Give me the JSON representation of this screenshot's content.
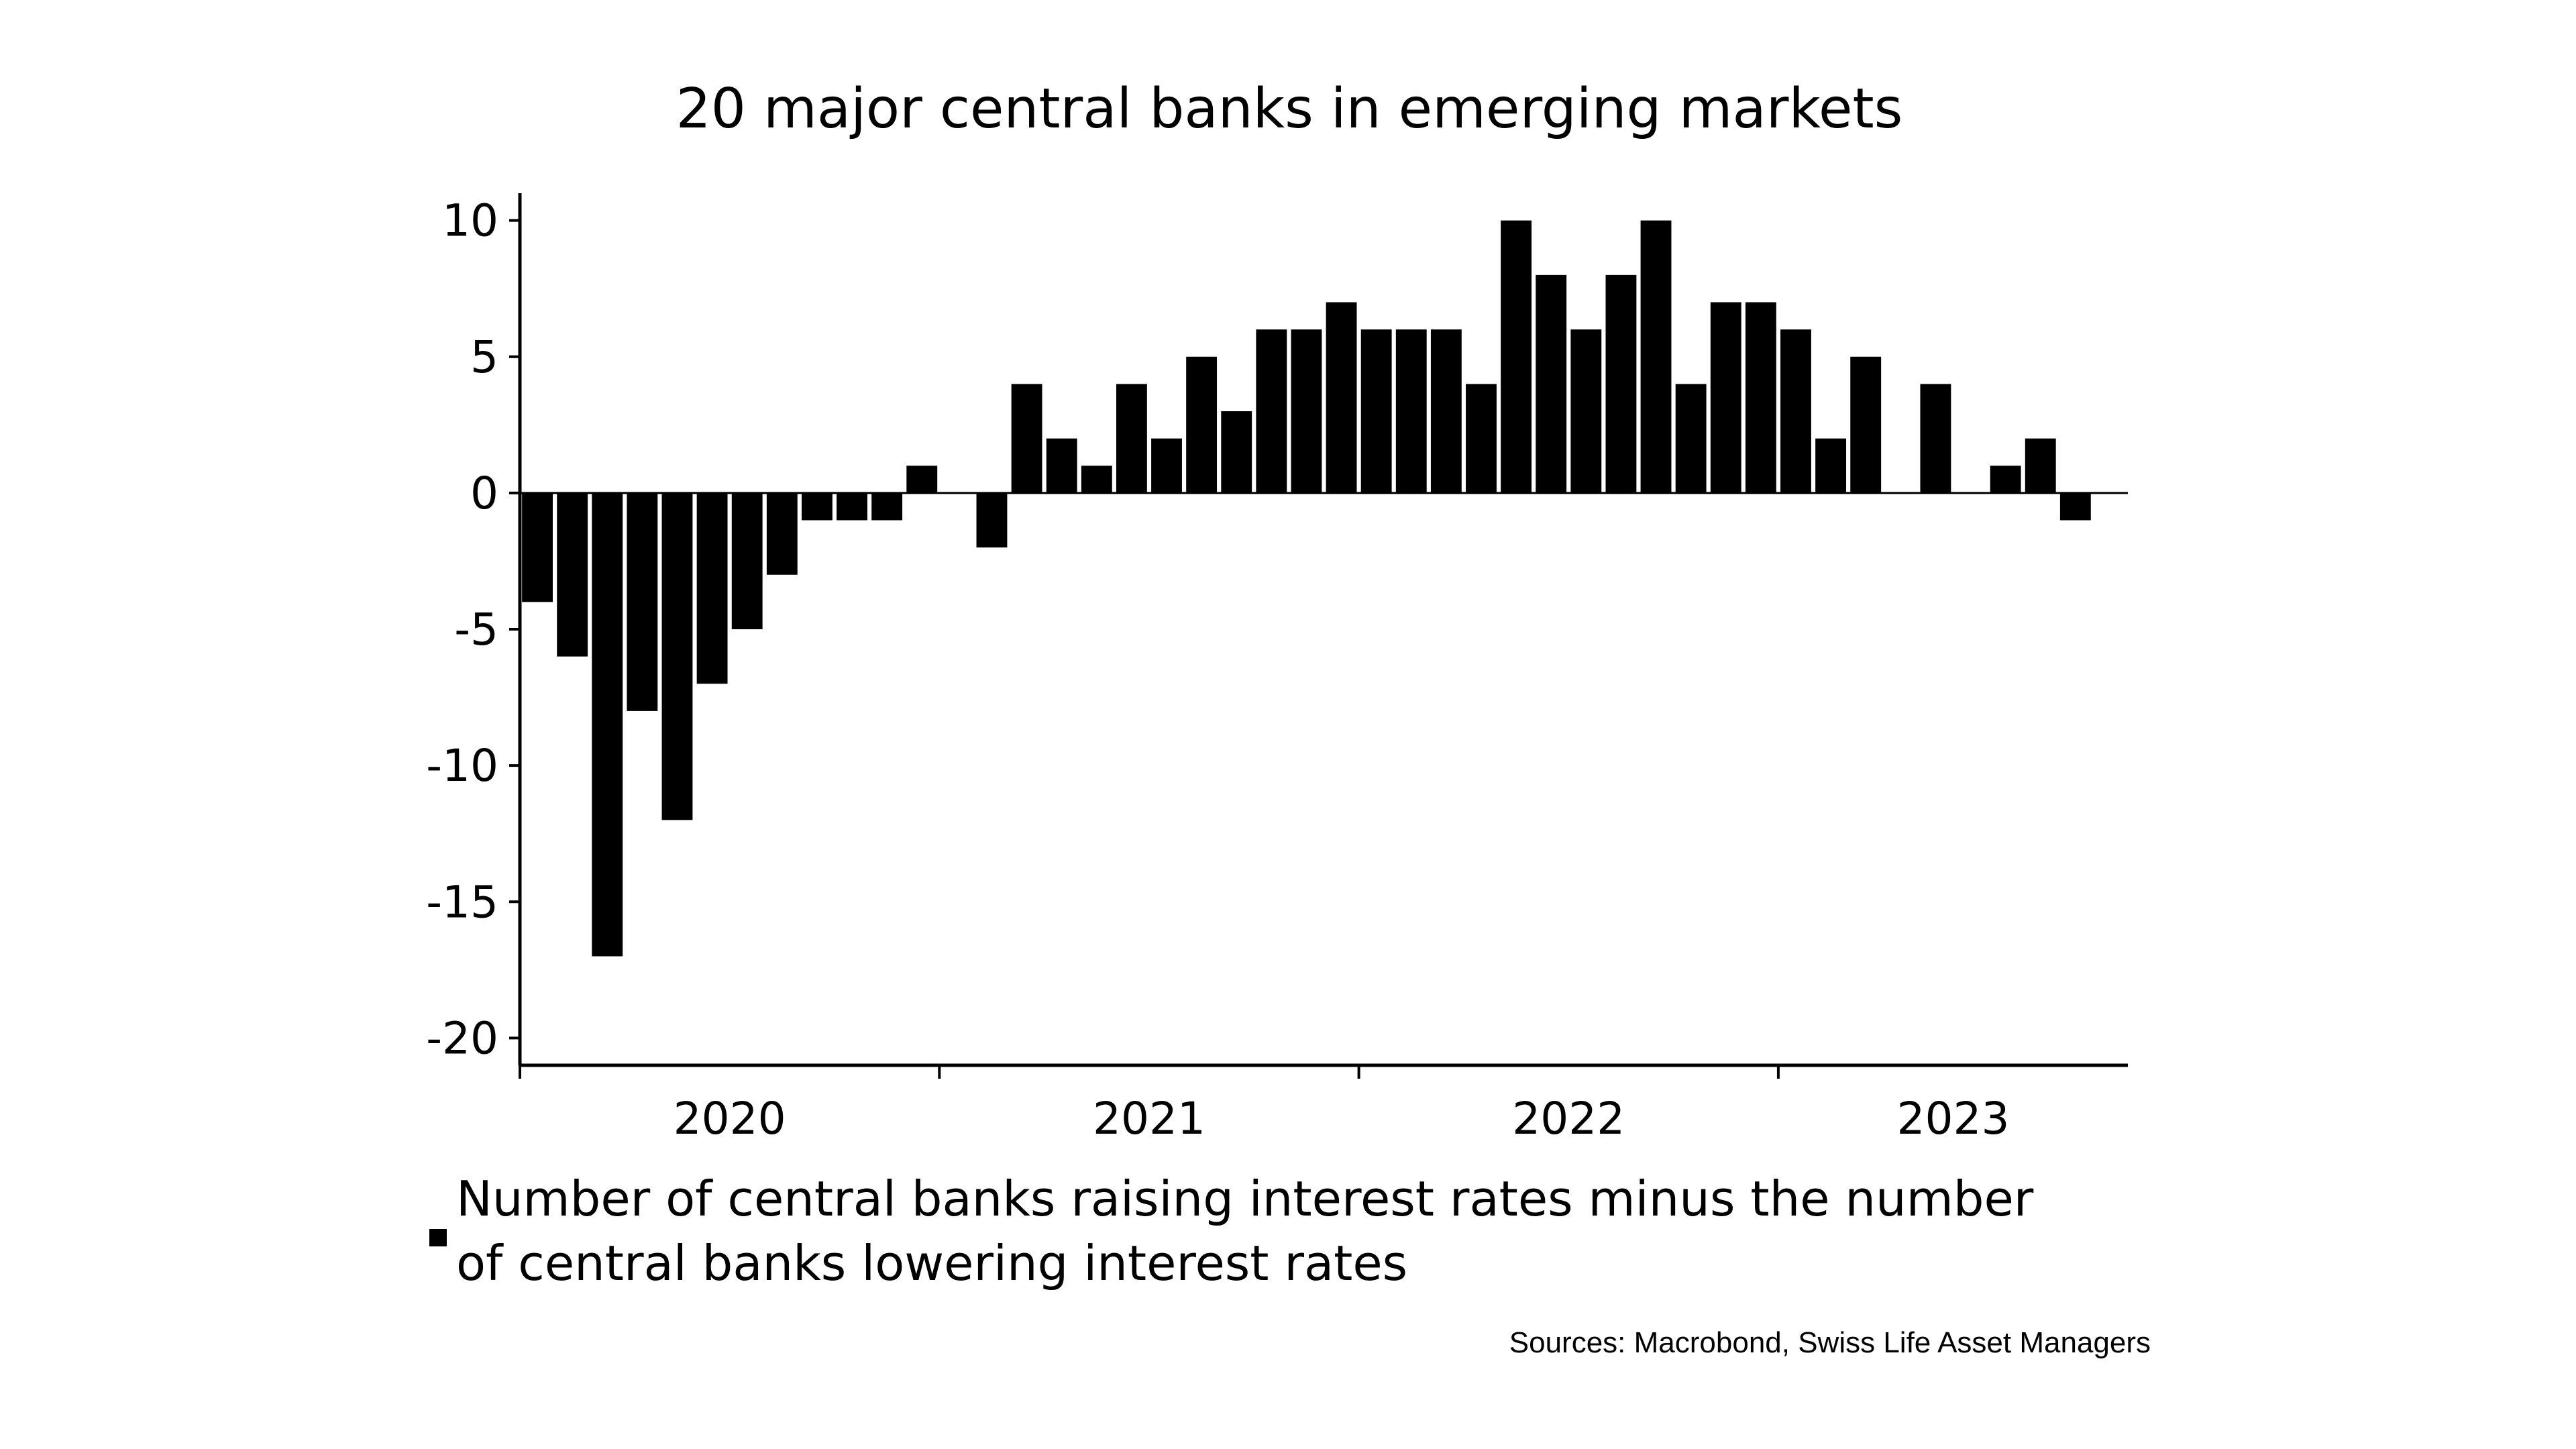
{
  "colors": {
    "background": "#ffffff",
    "bar": "#000000",
    "axis": "#000000",
    "text": "#000000"
  },
  "footer": {
    "source": "Sources: Macrobond, Swiss Life Asset Managers"
  },
  "chart_data": {
    "type": "bar",
    "title": "20 major central banks in emerging markets",
    "xlabel": "",
    "ylabel": "",
    "ylim": [
      -21,
      11
    ],
    "yticks": [
      10,
      5,
      0,
      -5,
      -10,
      -15,
      -20
    ],
    "ytick_labels": [
      "10",
      "5",
      "0",
      "-5",
      "-10",
      "-15",
      "-20"
    ],
    "xtick_labels": [
      "2020",
      "2021",
      "2022",
      "2023"
    ],
    "x_start": "2020-01",
    "x_end": "2023-10",
    "grid": false,
    "legend_position": "bottom",
    "categories": [
      "2020-01",
      "2020-02",
      "2020-03",
      "2020-04",
      "2020-05",
      "2020-06",
      "2020-07",
      "2020-08",
      "2020-09",
      "2020-10",
      "2020-11",
      "2020-12",
      "2021-01",
      "2021-02",
      "2021-03",
      "2021-04",
      "2021-05",
      "2021-06",
      "2021-07",
      "2021-08",
      "2021-09",
      "2021-10",
      "2021-11",
      "2021-12",
      "2022-01",
      "2022-02",
      "2022-03",
      "2022-04",
      "2022-05",
      "2022-06",
      "2022-07",
      "2022-08",
      "2022-09",
      "2022-10",
      "2022-11",
      "2022-12",
      "2023-01",
      "2023-02",
      "2023-03",
      "2023-04",
      "2023-05",
      "2023-06",
      "2023-07",
      "2023-08",
      "2023-09",
      "2023-10"
    ],
    "series": [
      {
        "name": "Number of central banks raising interest rates minus the number of central banks lowering interest rates",
        "legend_lines": [
          "Number of central banks raising interest rates minus the number",
          "of central banks lowering interest rates"
        ],
        "color": "#000000",
        "values": [
          -4,
          -6,
          -17,
          -8,
          -12,
          -7,
          -5,
          -3,
          -1,
          -1,
          -1,
          1,
          0,
          -2,
          4,
          2,
          1,
          4,
          2,
          5,
          3,
          6,
          6,
          7,
          6,
          6,
          6,
          4,
          10,
          8,
          6,
          8,
          10,
          4,
          7,
          7,
          6,
          2,
          5,
          0,
          4,
          0,
          1,
          2,
          -1,
          0
        ]
      }
    ]
  }
}
